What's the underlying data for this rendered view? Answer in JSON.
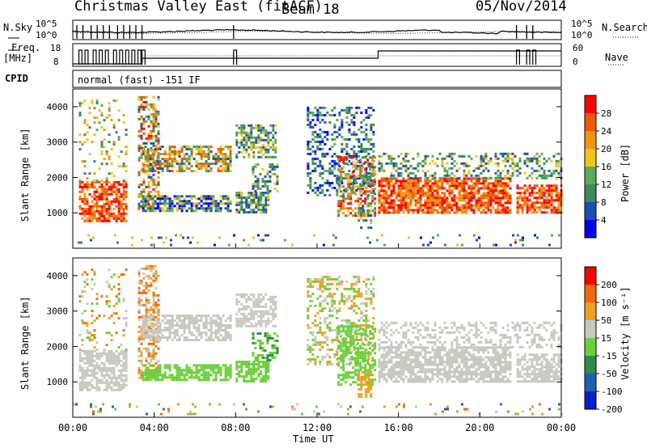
{
  "header": {
    "station": "Christmas Valley East (fitACF)",
    "beam": "Beam 18",
    "date": "05/Nov/2014"
  },
  "top_panels": {
    "nsky_label": "N.Sky",
    "nsearch_label": "N.Search",
    "noise_ticks": [
      "10^5",
      "10^0"
    ],
    "freq_label_1": "Freq.",
    "freq_label_2": "[MHz]",
    "freq_ticks": [
      "18",
      "8"
    ],
    "nave_label": "Nave",
    "nave_ticks": [
      "60",
      "0"
    ],
    "cpid_label": "CPID",
    "cpid_text": "normal (fast) -151 IF"
  },
  "chart_data": [
    {
      "type": "heatmap",
      "title": "",
      "ylabel": "Slant Range [km]",
      "ylim": [
        0,
        4500
      ],
      "yticks": [
        1000,
        2000,
        3000,
        4000
      ],
      "x_ticks": [
        "00:00",
        "04:00",
        "08:00",
        "12:00",
        "16:00",
        "20:00",
        "00:00"
      ],
      "colorbar": {
        "label": "Power [dB]",
        "ticks": [
          4,
          8,
          12,
          16,
          20,
          24,
          28
        ],
        "colors": [
          "#0000ff",
          "#1d4fb4",
          "#3a8a5a",
          "#5ea85a",
          "#f2c21b",
          "#f29510",
          "#ef5a00",
          "#ff0000"
        ]
      }
    },
    {
      "type": "heatmap",
      "title": "",
      "ylabel": "Slant Range [km]",
      "ylim": [
        0,
        4500
      ],
      "yticks": [
        1000,
        2000,
        3000,
        4000
      ],
      "x_ticks": [
        "00:00",
        "04:00",
        "08:00",
        "12:00",
        "16:00",
        "20:00",
        "00:00"
      ],
      "xlabel": "Time UT",
      "colorbar": {
        "label": "Velocity [m s⁻¹]",
        "ticks": [
          200,
          100,
          50,
          15,
          -15,
          -50,
          -100,
          -200
        ],
        "colors": [
          "#0020c8",
          "#1f5fb0",
          "#2e8a48",
          "#6ccf3a",
          "#c8c8c0",
          "#f0a020",
          "#f26a10",
          "#ff0000"
        ]
      }
    }
  ]
}
